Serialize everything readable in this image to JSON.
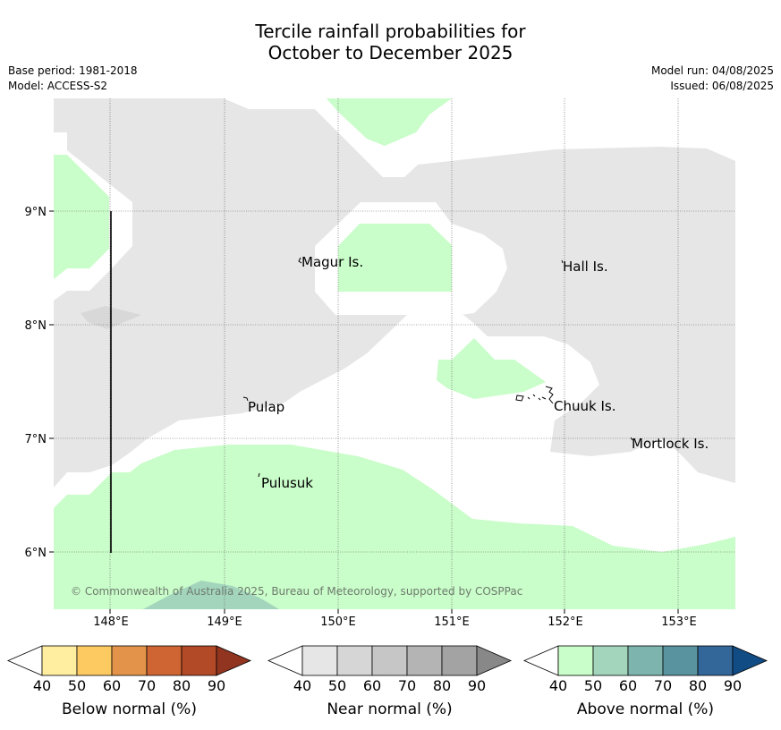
{
  "title": {
    "line1": "Tercile rainfall probabilities for",
    "line2": "October to December 2025"
  },
  "meta": {
    "base_period": "Base period: 1981-2018",
    "model": "Model: ACCESS-S2",
    "model_run": "Model run: 04/08/2025",
    "issued": "Issued: 06/08/2025"
  },
  "map": {
    "lat_labels": [
      "9°N",
      "8°N",
      "7°N",
      "6°N"
    ],
    "lon_labels": [
      "148°E",
      "149°E",
      "150°E",
      "151°E",
      "152°E",
      "153°E"
    ],
    "places": [
      "Magur Is.",
      "Hall Is.",
      "Pulap",
      "Chuuk Is.",
      "Mortlock Is.",
      "Pulusuk"
    ],
    "copyright": "© Commonwealth of Australia 2025, Bureau of Meteorology, supported by COSPPac",
    "colors": {
      "near_normal_fill": "#e6e6e6",
      "above_normal_fill": "#c9fdc9",
      "above_normal_50": "#a3d5bd",
      "near_normal_50": "#d8d8d8"
    }
  },
  "legend": {
    "below": {
      "label": "Below normal (%)",
      "ticks": [
        "40",
        "50",
        "60",
        "70",
        "80",
        "90"
      ],
      "colors": [
        "#ffeda0",
        "#fdca62",
        "#e3944a",
        "#cf6533",
        "#b24a27",
        "#913420"
      ]
    },
    "near": {
      "label": "Near normal (%)",
      "ticks": [
        "40",
        "50",
        "60",
        "70",
        "80",
        "90"
      ],
      "colors": [
        "#e6e6e6",
        "#d6d6d6",
        "#c6c6c6",
        "#b4b4b4",
        "#a3a3a3",
        "#888888"
      ]
    },
    "above": {
      "label": "Above normal (%)",
      "ticks": [
        "40",
        "50",
        "60",
        "70",
        "80",
        "90"
      ],
      "colors": [
        "#c9fdc9",
        "#a3d5bd",
        "#7db4ad",
        "#5a93a0",
        "#336699",
        "#124c85"
      ]
    }
  }
}
